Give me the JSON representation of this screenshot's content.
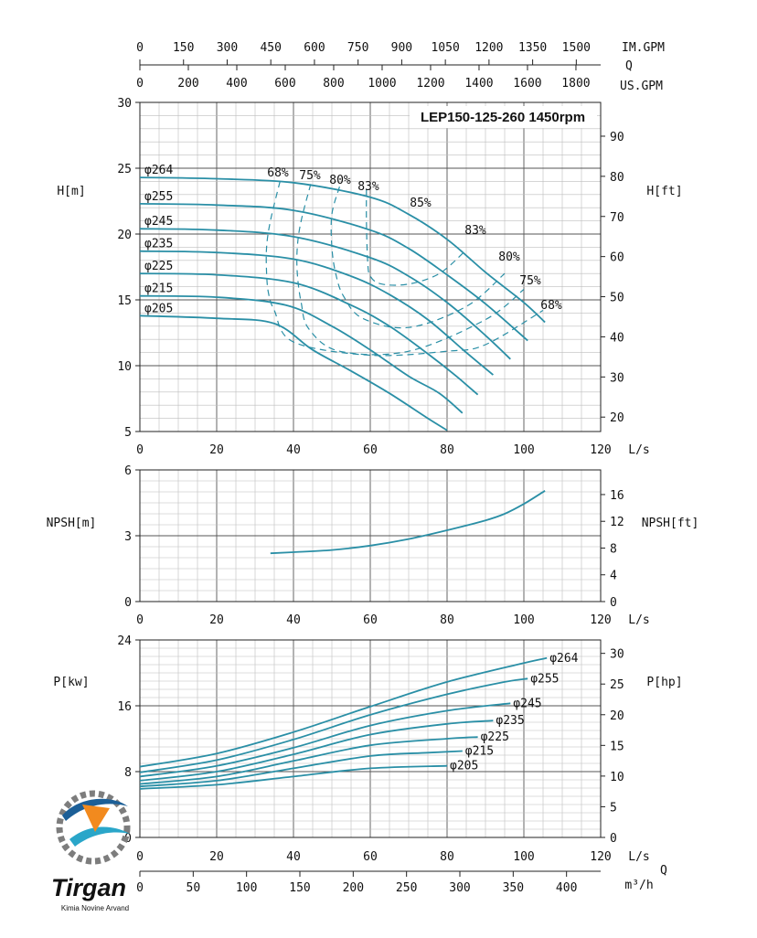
{
  "title": "LEP150-125-260 1450rpm",
  "top_axis": {
    "im_label": "IM.GPM",
    "q_label": "Q",
    "us_label": "US.GPM",
    "im_ticks": [
      "0",
      "150",
      "300",
      "450",
      "600",
      "750",
      "900",
      "1050",
      "1200",
      "1350",
      "1500"
    ],
    "us_ticks": [
      "0",
      "200",
      "400",
      "600",
      "800",
      "1000",
      "1200",
      "1400",
      "1600",
      "1800"
    ]
  },
  "bottom_axis": {
    "ls_ticks": [
      "0",
      "20",
      "40",
      "60",
      "80",
      "100",
      "120"
    ],
    "ls_unit": "L/s",
    "q_label": "Q",
    "m3h_ticks": [
      "0",
      "50",
      "100",
      "150",
      "200",
      "250",
      "300",
      "350",
      "400"
    ],
    "m3h_unit": "m³/h"
  },
  "head_panel": {
    "ylabel_left": "H[m]",
    "ylabel_right": "H[ft]",
    "yticks_left": [
      "5",
      "10",
      "15",
      "20",
      "25",
      "30"
    ],
    "yticks_right": [
      "20",
      "30",
      "40",
      "50",
      "60",
      "70",
      "80",
      "90"
    ],
    "xticks": [
      "0",
      "20",
      "40",
      "60",
      "80",
      "100",
      "120"
    ],
    "xunit": "L/s",
    "curve_labels": [
      "φ264",
      "φ255",
      "φ245",
      "φ235",
      "φ225",
      "φ215",
      "φ205"
    ],
    "eff_labels_top": [
      "68%",
      "75%",
      "80%",
      "83%",
      "85%"
    ],
    "eff_labels_right": [
      "83%",
      "80%",
      "75%",
      "68%"
    ]
  },
  "npsh_panel": {
    "ylabel_left": "NPSH[m]",
    "ylabel_right": "NPSH[ft]",
    "yticks_left": [
      "0",
      "3",
      "6"
    ],
    "yticks_right": [
      "0",
      "4",
      "8",
      "12",
      "16"
    ],
    "xticks": [
      "0",
      "20",
      "40",
      "60",
      "80",
      "100",
      "120"
    ],
    "xunit": "L/s"
  },
  "power_panel": {
    "ylabel_left": "P[kw]",
    "ylabel_right": "P[hp]",
    "yticks_left": [
      "0",
      "8",
      "16",
      "24"
    ],
    "yticks_right": [
      "0",
      "5",
      "10",
      "15",
      "20",
      "25",
      "30"
    ],
    "curve_labels": [
      "φ264",
      "φ255",
      "φ245",
      "φ235",
      "φ225",
      "φ215",
      "φ205"
    ]
  },
  "logo": {
    "name": "Tirgan",
    "subtitle": "Kimia Novine Arvand"
  },
  "colors": {
    "curve": "#2a8fa6",
    "grid": "#bdbdbd",
    "axis": "#222222"
  },
  "chart_data": [
    {
      "type": "line",
      "title": "LEP150-125-260 1450rpm",
      "xlabel": "L/s",
      "ylabel": "H[m]",
      "xlim": [
        0,
        120
      ],
      "ylim": [
        5,
        30
      ],
      "series": [
        {
          "name": "φ264",
          "x": [
            0,
            20,
            40,
            60,
            70,
            80,
            90,
            100,
            105.5
          ],
          "y": [
            24.3,
            24.2,
            23.9,
            22.8,
            21.5,
            19.6,
            17.1,
            14.8,
            13.3
          ]
        },
        {
          "name": "φ255",
          "x": [
            0,
            20,
            40,
            60,
            70,
            80,
            90,
            101
          ],
          "y": [
            22.3,
            22.2,
            21.8,
            20.3,
            18.9,
            16.9,
            14.7,
            11.9
          ]
        },
        {
          "name": "φ245",
          "x": [
            0,
            20,
            40,
            60,
            70,
            80,
            90,
            96.5
          ],
          "y": [
            20.4,
            20.3,
            19.8,
            18.2,
            16.8,
            14.8,
            12.3,
            10.5
          ]
        },
        {
          "name": "φ235",
          "x": [
            0,
            20,
            40,
            55,
            65,
            75,
            85,
            92
          ],
          "y": [
            18.7,
            18.6,
            18.1,
            16.8,
            15.4,
            13.5,
            11.0,
            9.3
          ]
        },
        {
          "name": "φ225",
          "x": [
            0,
            20,
            40,
            55,
            65,
            75,
            82,
            88
          ],
          "y": [
            17.0,
            16.9,
            16.3,
            14.6,
            13.0,
            10.9,
            9.3,
            7.8
          ]
        },
        {
          "name": "φ215",
          "x": [
            0,
            20,
            38,
            50,
            60,
            70,
            78,
            84
          ],
          "y": [
            15.3,
            15.2,
            14.6,
            13.0,
            11.2,
            9.2,
            7.9,
            6.4
          ]
        },
        {
          "name": "φ205",
          "x": [
            0,
            20,
            35,
            45,
            55,
            65,
            75,
            80
          ],
          "y": [
            13.8,
            13.6,
            13.2,
            11.2,
            9.6,
            7.9,
            6.0,
            5.1
          ]
        }
      ],
      "efficiency_curves": [
        {
          "name": "68%",
          "x": [
            36.5,
            34,
            33,
            33,
            33.5,
            35,
            40,
            60,
            80,
            90,
            105
          ],
          "y": [
            24.0,
            21.0,
            19.0,
            17.0,
            15.5,
            14.2,
            11.8,
            10.8,
            11.1,
            11.6,
            14.2
          ]
        },
        {
          "name": "75%",
          "x": [
            44.5,
            42,
            41,
            41,
            42,
            44,
            52,
            70,
            90,
            100
          ],
          "y": [
            23.8,
            21.0,
            19.0,
            17.0,
            14.8,
            12.8,
            11.1,
            11.1,
            13.5,
            15.8
          ]
        },
        {
          "name": "80%",
          "x": [
            52,
            50,
            50,
            51,
            53,
            58,
            70,
            85,
            95
          ],
          "y": [
            23.6,
            21.5,
            19.0,
            17.0,
            15.3,
            13.6,
            12.9,
            14.5,
            17.0
          ]
        },
        {
          "name": "83%",
          "x": [
            59,
            59,
            59.3,
            60,
            63,
            70,
            78,
            85
          ],
          "y": [
            23.4,
            21.0,
            18.0,
            16.8,
            16.2,
            16.2,
            17.0,
            18.8
          ]
        }
      ],
      "yright": {
        "label": "H[ft]",
        "ylim_ft": [
          16.4,
          98.4
        ]
      }
    },
    {
      "type": "line",
      "xlabel": "L/s",
      "ylabel": "NPSH[m]",
      "xlim": [
        0,
        120
      ],
      "ylim": [
        0,
        6
      ],
      "series": [
        {
          "name": "",
          "x": [
            34,
            40,
            50,
            60,
            70,
            80,
            90,
            95,
            100,
            105.5
          ],
          "y": [
            2.2,
            2.25,
            2.35,
            2.55,
            2.85,
            3.25,
            3.7,
            4.0,
            4.45,
            5.05
          ]
        }
      ],
      "yright": {
        "label": "NPSH[ft]",
        "ylim_ft": [
          0,
          19.7
        ]
      }
    },
    {
      "type": "line",
      "xlabel": "L/s",
      "ylabel": "P[kw]",
      "xlim": [
        0,
        120
      ],
      "ylim": [
        0,
        24
      ],
      "series": [
        {
          "name": "φ264",
          "x": [
            0,
            20,
            40,
            60,
            80,
            100,
            106
          ],
          "y": [
            8.6,
            10.2,
            12.8,
            15.9,
            18.9,
            21.2,
            21.8
          ]
        },
        {
          "name": "φ255",
          "x": [
            0,
            20,
            40,
            60,
            80,
            95,
            101
          ],
          "y": [
            7.9,
            9.4,
            11.9,
            14.9,
            17.4,
            18.9,
            19.3
          ]
        },
        {
          "name": "φ245",
          "x": [
            0,
            20,
            40,
            60,
            80,
            96.5
          ],
          "y": [
            7.4,
            8.7,
            10.9,
            13.6,
            15.4,
            16.3
          ]
        },
        {
          "name": "φ235",
          "x": [
            0,
            20,
            40,
            60,
            80,
            92
          ],
          "y": [
            6.9,
            8.0,
            10.1,
            12.5,
            13.8,
            14.2
          ]
        },
        {
          "name": "φ225",
          "x": [
            0,
            20,
            40,
            60,
            80,
            88
          ],
          "y": [
            6.5,
            7.4,
            9.3,
            11.2,
            12.0,
            12.2
          ]
        },
        {
          "name": "φ215",
          "x": [
            0,
            20,
            40,
            60,
            75,
            84
          ],
          "y": [
            6.2,
            6.9,
            8.4,
            9.9,
            10.3,
            10.5
          ]
        },
        {
          "name": "φ205",
          "x": [
            0,
            20,
            40,
            60,
            80
          ],
          "y": [
            5.9,
            6.4,
            7.4,
            8.4,
            8.7
          ]
        }
      ],
      "yright": {
        "label": "P[hp]",
        "ylim_hp": [
          0,
          32.2
        ]
      }
    }
  ]
}
